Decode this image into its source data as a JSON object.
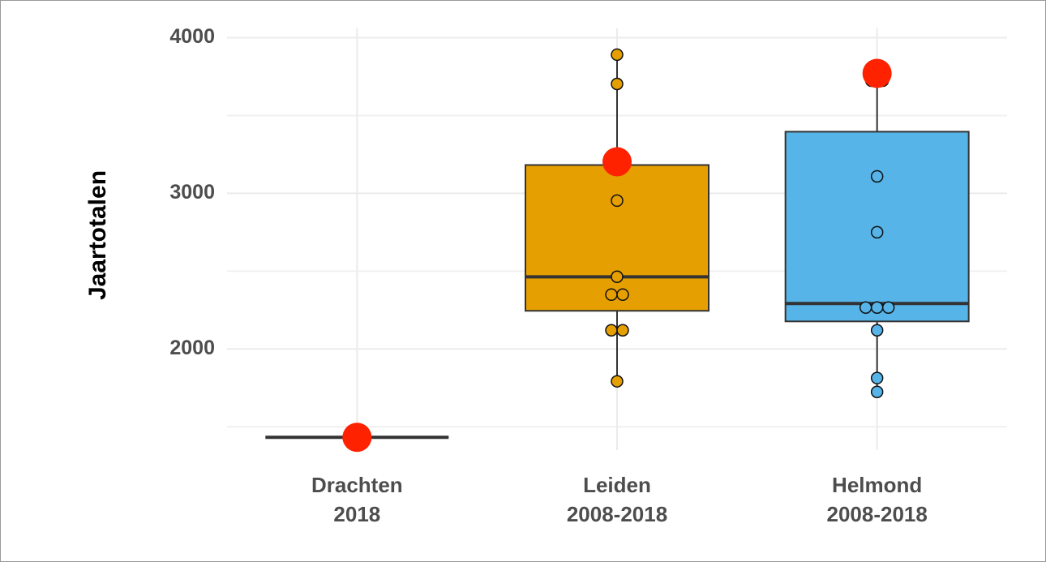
{
  "chart_data": {
    "type": "boxplot",
    "y_label": "Jaartotalen",
    "categories": [
      [
        "Drachten",
        "2018"
      ],
      [
        "Leiden",
        "2008-2018"
      ],
      [
        "Helmond",
        "2008-2018"
      ]
    ],
    "boxes": [
      {
        "whisker_low": 1432,
        "q1": 1432,
        "median": 1432,
        "q3": 1432,
        "whisker_high": 1432
      },
      {
        "whisker_low": 1792,
        "q1": 2245,
        "median": 2463,
        "q3": 3182,
        "whisker_high": 3891,
        "color": "#e69f00"
      },
      {
        "whisker_low": 1724,
        "q1": 2177,
        "median": 2292,
        "q3": 3396,
        "whisker_high": 3724,
        "color": "#56b4e9"
      }
    ],
    "points": [
      [],
      [
        3891,
        3703,
        2953,
        2464,
        2349,
        2349,
        2120,
        2120,
        1792
      ],
      [
        3724,
        3724,
        3109,
        2750,
        2266,
        2266,
        2266,
        2120,
        1813,
        1724
      ]
    ],
    "highlight": {
      "color": "#ff2200",
      "values": [
        1432,
        3203,
        3771
      ]
    },
    "ylim": [
      1350,
      4060
    ],
    "yticks": [
      2000,
      3000,
      4000
    ],
    "minor_grid": [
      1500,
      2500,
      3500
    ],
    "grid": true
  }
}
